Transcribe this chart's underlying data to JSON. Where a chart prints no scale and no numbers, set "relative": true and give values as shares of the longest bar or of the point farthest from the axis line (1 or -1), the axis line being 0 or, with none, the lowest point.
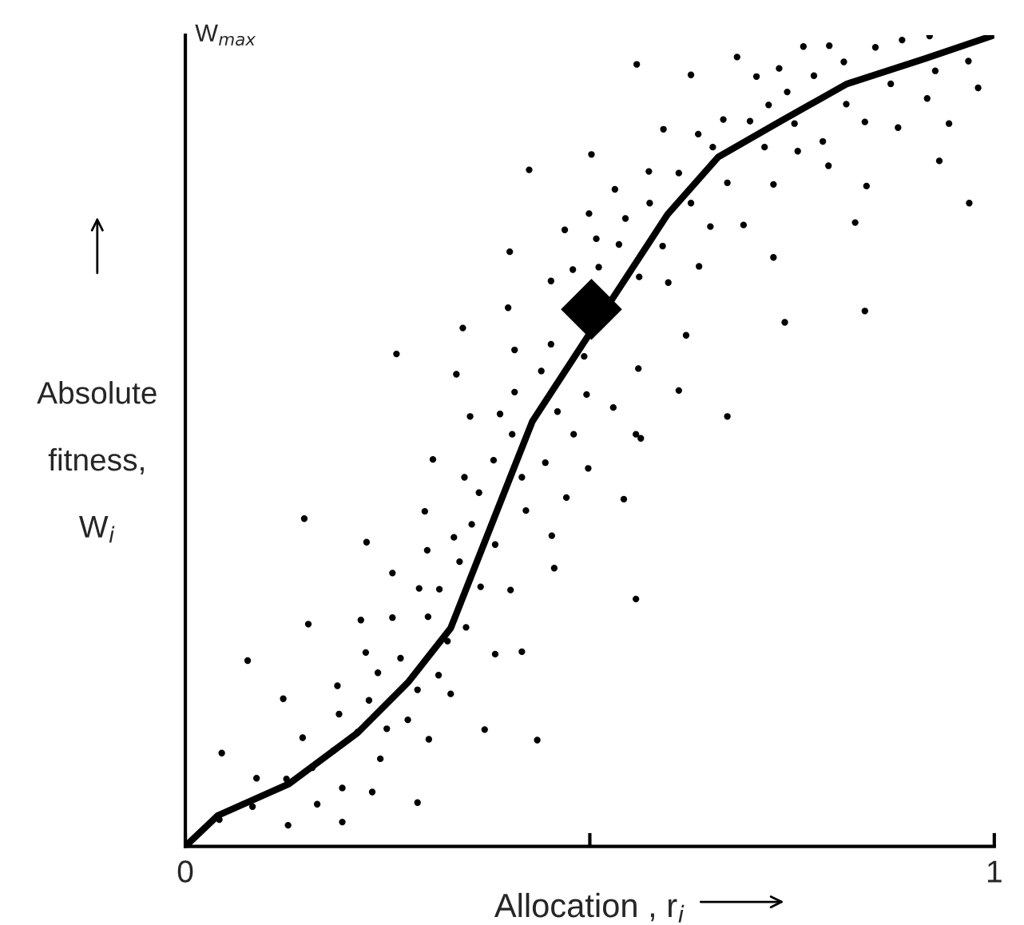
{
  "chart_data": {
    "type": "scatter",
    "relative": true,
    "xlabel": "Allocation , r$_{i}$",
    "ylabel": "Absolute\n\nfitness,\n\nW$_{i}$",
    "annotations": [
      "W$_{max}$"
    ],
    "xlim": [
      0,
      1
    ],
    "xticks": [
      0,
      {
        "value": 0.5,
        "label": null
      },
      1
    ],
    "grid": false,
    "legend": false,
    "series": [
      {
        "marker": "circle",
        "color": "#000000",
        "x": [
          0.502,
          0.425,
          0.499,
          0.469,
          0.401,
          0.479,
          0.452,
          0.399,
          0.343,
          0.261,
          0.407,
          0.452,
          0.493,
          0.335,
          0.44,
          0.407,
          0.496,
          0.352,
          0.389,
          0.46,
          0.404,
          0.48,
          0.558,
          0.625,
          0.682,
          0.764,
          0.796,
          0.853,
          0.886,
          0.92,
          0.706,
          0.734,
          0.777,
          0.814,
          0.744,
          0.721,
          0.872,
          0.927,
          0.968,
          0.98,
          0.917,
          0.817,
          0.591,
          0.634,
          0.665,
          0.698,
          0.753,
          0.84,
          0.881,
          0.944,
          0.652,
          0.716,
          0.757,
          0.788,
          0.795,
          0.932,
          0.573,
          0.61,
          0.67,
          0.727,
          0.842,
          0.531,
          0.574,
          0.625,
          0.969,
          0.544,
          0.649,
          0.69,
          0.828,
          0.508,
          0.536,
          0.59,
          0.727,
          0.511,
          0.561,
          0.597,
          0.635,
          0.619,
          0.741,
          0.84,
          0.56,
          0.529,
          0.61,
          0.67,
          0.557,
          0.563,
          0.498,
          0.471,
          0.542,
          0.557,
          0.306,
          0.381,
          0.445,
          0.345,
          0.416,
          0.363,
          0.147,
          0.296,
          0.421,
          0.354,
          0.224,
          0.332,
          0.453,
          0.299,
          0.383,
          0.339,
          0.456,
          0.256,
          0.289,
          0.314,
          0.365,
          0.402,
          0.152,
          0.217,
          0.256,
          0.3,
          0.347,
          0.324,
          0.223,
          0.383,
          0.416,
          0.077,
          0.266,
          0.238,
          0.313,
          0.188,
          0.121,
          0.227,
          0.287,
          0.328,
          0.19,
          0.275,
          0.145,
          0.213,
          0.249,
          0.37,
          0.301,
          0.435,
          0.183,
          0.045,
          0.157,
          0.241,
          0.088,
          0.125,
          0.194,
          0.231,
          0.163,
          0.083,
          0.287,
          0.042,
          0.127,
          0.194
        ],
        "values": [
          0.853,
          0.834,
          0.78,
          0.76,
          0.733,
          0.711,
          0.697,
          0.664,
          0.639,
          0.607,
          0.612,
          0.619,
          0.604,
          0.582,
          0.586,
          0.56,
          0.557,
          0.53,
          0.533,
          0.536,
          0.508,
          0.508,
          0.964,
          0.951,
          0.973,
          0.986,
          0.987,
          0.985,
          0.994,
          0.999,
          0.949,
          0.959,
          0.95,
          0.967,
          0.93,
          0.914,
          0.94,
          0.956,
          0.968,
          0.935,
          0.922,
          0.915,
          0.884,
          0.878,
          0.896,
          0.894,
          0.891,
          0.893,
          0.886,
          0.891,
          0.862,
          0.862,
          0.857,
          0.869,
          0.839,
          0.845,
          0.832,
          0.83,
          0.818,
          0.816,
          0.814,
          0.81,
          0.793,
          0.793,
          0.793,
          0.774,
          0.764,
          0.766,
          0.769,
          0.749,
          0.742,
          0.74,
          0.726,
          0.714,
          0.702,
          0.695,
          0.715,
          0.63,
          0.646,
          0.66,
          0.589,
          0.541,
          0.562,
          0.53,
          0.508,
          0.503,
          0.466,
          0.43,
          0.428,
          0.305,
          0.477,
          0.476,
          0.473,
          0.455,
          0.455,
          0.436,
          0.404,
          0.413,
          0.414,
          0.397,
          0.375,
          0.381,
          0.383,
          0.365,
          0.372,
          0.351,
          0.343,
          0.337,
          0.318,
          0.317,
          0.32,
          0.316,
          0.274,
          0.279,
          0.282,
          0.283,
          0.27,
          0.253,
          0.239,
          0.237,
          0.24,
          0.229,
          0.232,
          0.214,
          0.211,
          0.198,
          0.182,
          0.18,
          0.193,
          0.188,
          0.163,
          0.156,
          0.134,
          0.141,
          0.145,
          0.144,
          0.132,
          0.131,
          0.118,
          0.115,
          0.097,
          0.108,
          0.084,
          0.083,
          0.072,
          0.067,
          0.052,
          0.049,
          0.054,
          0.033,
          0.026,
          0.03
        ]
      },
      {
        "type": "line",
        "marker": "none",
        "line_style": "solid",
        "color": "#000000",
        "x": [
          0,
          0.04,
          0.128,
          0.213,
          0.276,
          0.328,
          0.366,
          0.404,
          0.429,
          0.596,
          0.659,
          0.736,
          0.818,
          0.914,
          1.0
        ],
        "values": [
          0,
          0.038,
          0.077,
          0.14,
          0.203,
          0.269,
          0.365,
          0.461,
          0.524,
          0.779,
          0.85,
          0.894,
          0.94,
          0.971,
          1.0
        ]
      },
      {
        "marker": "diamond",
        "color": "#000000",
        "x": [
          0.502
        ],
        "values": [
          0.662
        ]
      }
    ]
  }
}
